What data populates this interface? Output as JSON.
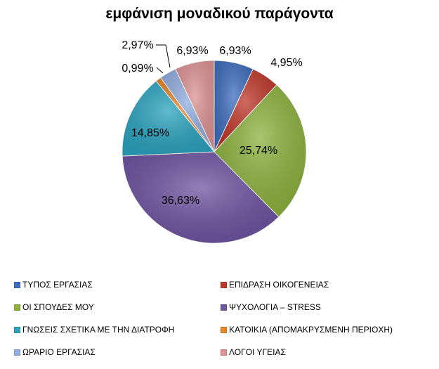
{
  "chart_data": {
    "type": "pie",
    "title": "εμφάνιση μοναδικού παράγοντα",
    "legend_position": "bottom",
    "slices": [
      {
        "name": "ΤΥΠΟΣ ΕΡΓΑΣΙΑΣ",
        "value": 6.93,
        "label": "6,93%",
        "color": "#3f6fbf"
      },
      {
        "name": "ΕΠΙΔΡΑΣΗ ΟΙΚΟΓΕΝΕΙΑΣ",
        "value": 4.95,
        "label": "4,95%",
        "color": "#c0392b"
      },
      {
        "name": "ΟΙ ΣΠΟΥΔΕΣ ΜΟΥ",
        "value": 25.74,
        "label": "25,74%",
        "color": "#8db33e"
      },
      {
        "name": "ΨΥΧΟΛΟΓΙΑ – STRESS",
        "value": 36.63,
        "label": "36,63%",
        "color": "#7055a3"
      },
      {
        "name": "ΓΝΩΣΕΙΣ ΣΧΕΤΙΚΑ ΜΕ ΤΗΝ ΔΙΑΤΡΟΦΗ",
        "value": 14.85,
        "label": "14,85%",
        "color": "#2da4c0"
      },
      {
        "name": "ΚΑΤΟΙΚΙΑ (ΑΠΟΜΑΚΡΥΣΜΕΝΗ ΠΕΡΙΟΧΗ)",
        "value": 0.99,
        "label": "0,99%",
        "color": "#e8882b"
      },
      {
        "name": "ΩΡΑΡΙΟ ΕΡΓΑΣΙΑΣ",
        "value": 2.97,
        "label": "2,97%",
        "color": "#92aee0"
      },
      {
        "name": "ΛΟΓΟΙ ΥΓΕΙΑΣ",
        "value": 6.93,
        "label": "6,93%",
        "color": "#de9494"
      }
    ]
  }
}
